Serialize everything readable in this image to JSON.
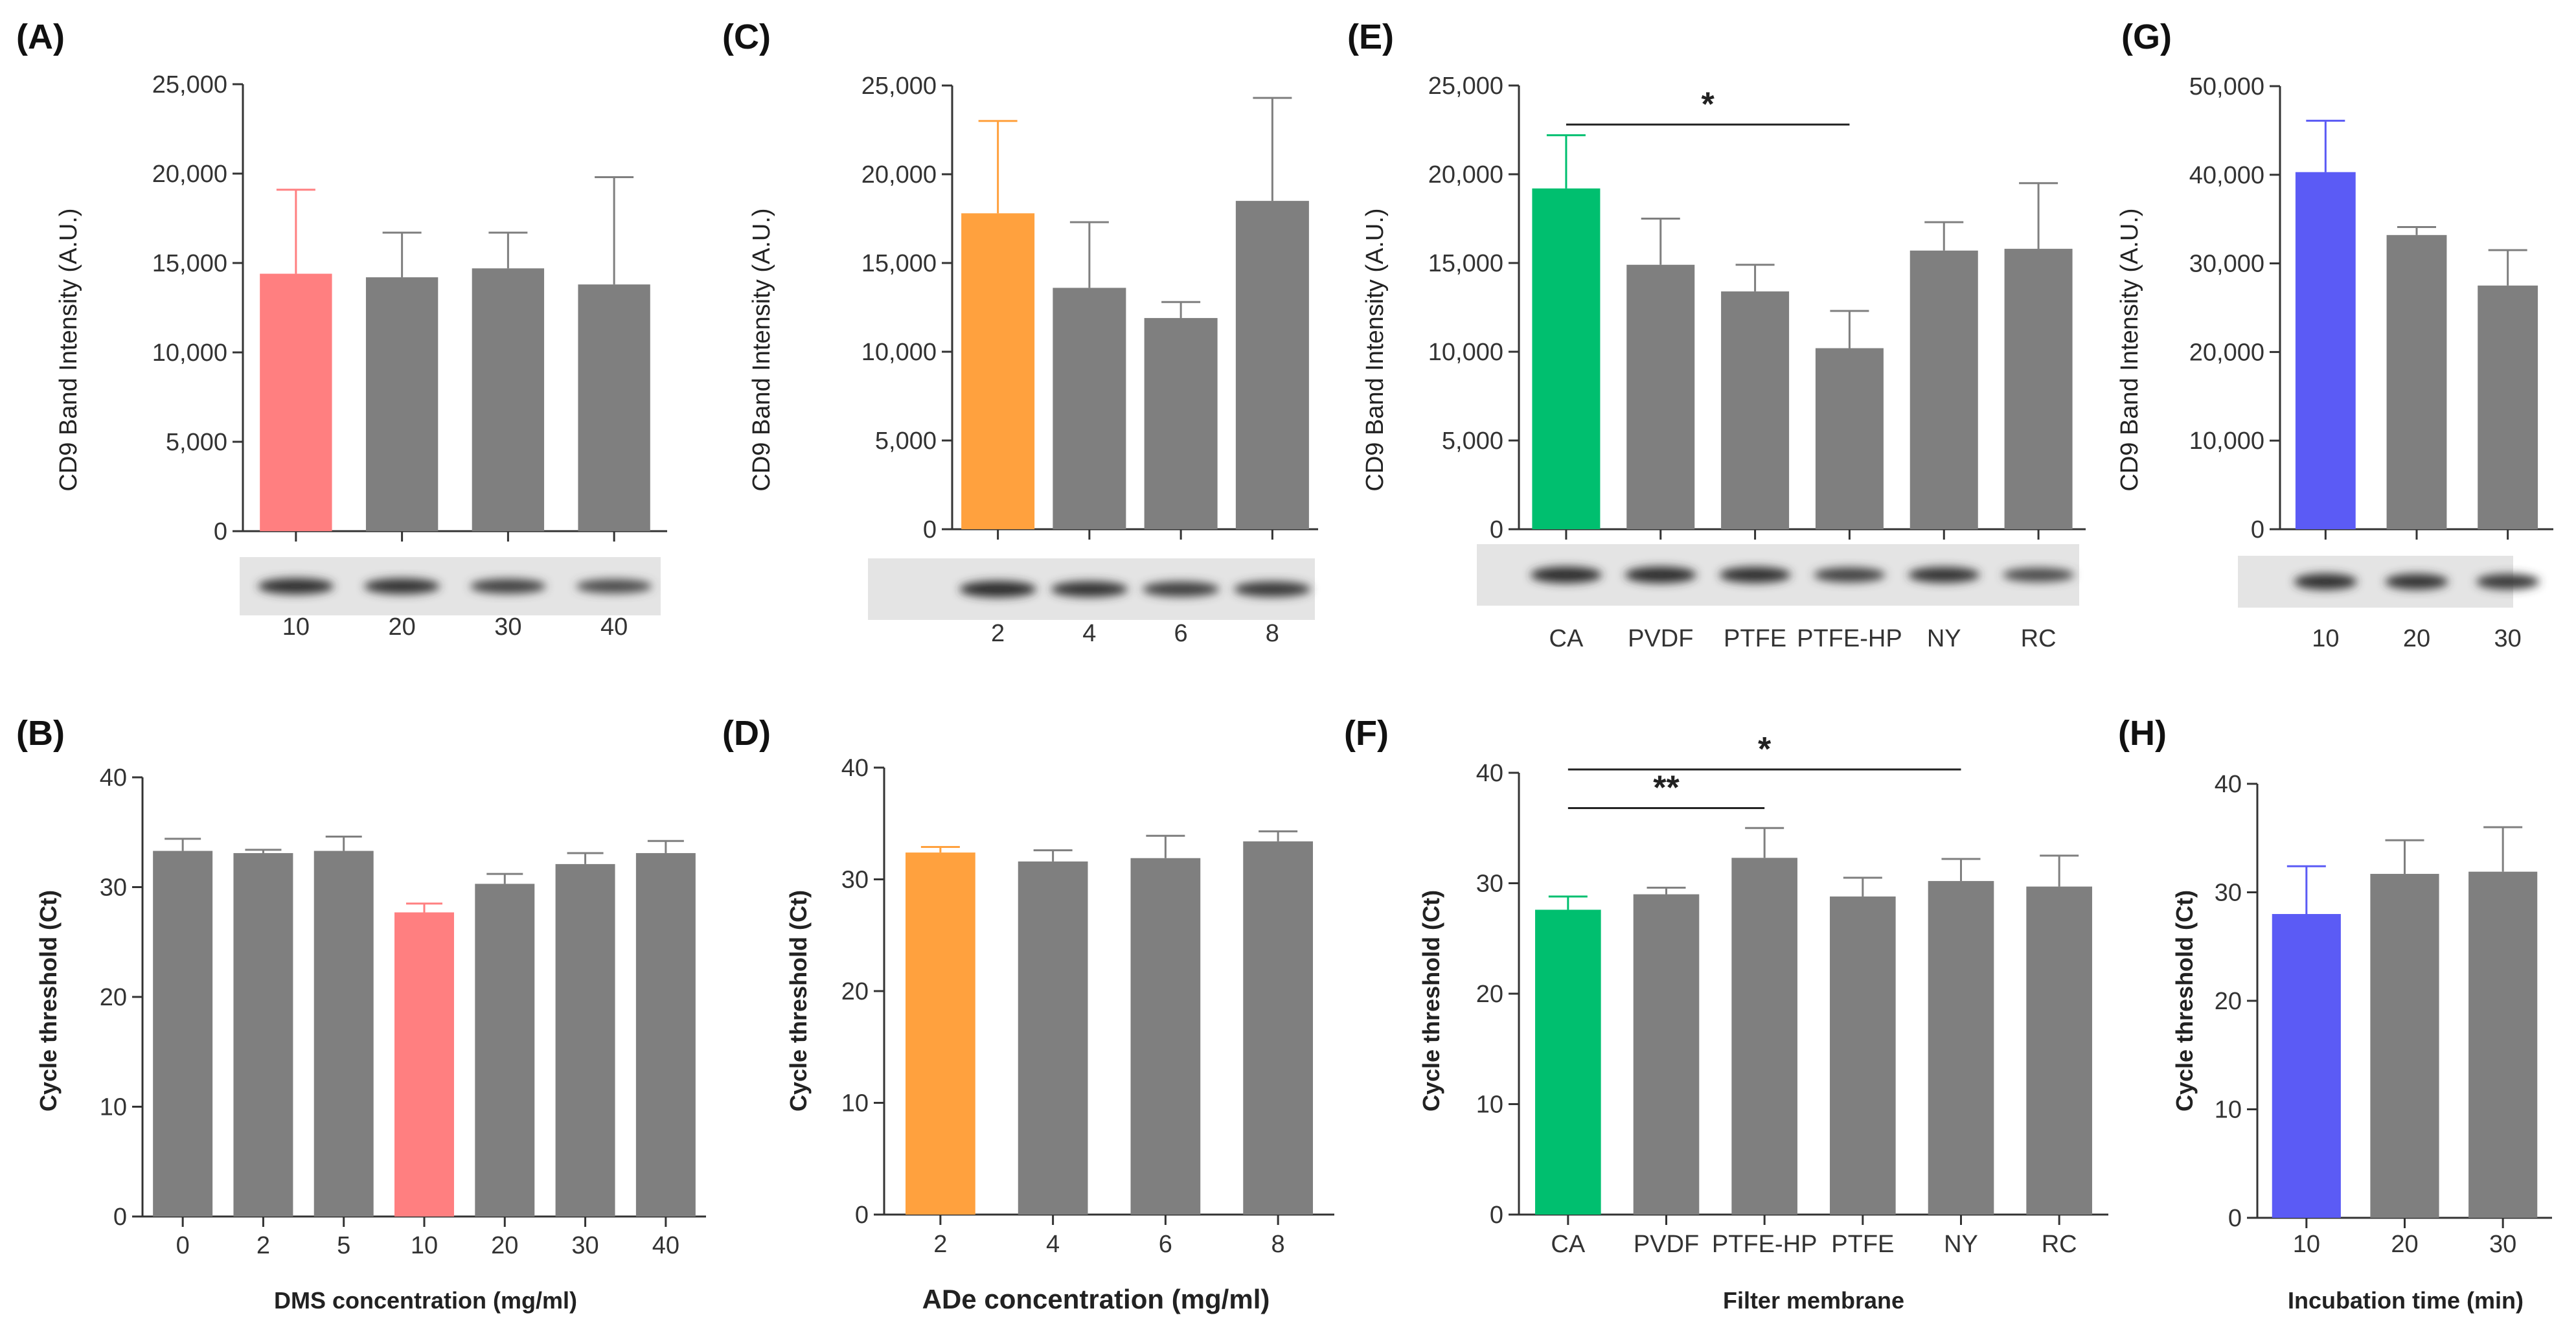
{
  "gray_color": "#7f7f7f",
  "chart_data": [
    {
      "id": "A",
      "label": "(A)",
      "type": "bar",
      "categories": [
        "10",
        "20",
        "30",
        "40"
      ],
      "values": [
        14400,
        14200,
        14700,
        13800
      ],
      "errors": [
        4700,
        2500,
        2000,
        6000
      ],
      "ylim": [
        0,
        25000
      ],
      "yticks": [
        "0",
        "5,000",
        "10,000",
        "15,000",
        "20,000",
        "25,000"
      ],
      "ylabel": "CD9 Band Intensity (A.U.)",
      "xlabel": "",
      "highlight_index": 0,
      "highlight_color": "#ff7f80",
      "blot": [
        0.9,
        0.85,
        0.7,
        0.6
      ],
      "significance": []
    },
    {
      "id": "C",
      "label": "(C)",
      "type": "bar",
      "categories": [
        "2",
        "4",
        "6",
        "8"
      ],
      "values": [
        17800,
        13600,
        11900,
        18500
      ],
      "errors": [
        5200,
        3700,
        900,
        5800
      ],
      "ylim": [
        0,
        25000
      ],
      "yticks": [
        "0",
        "5,000",
        "10,000",
        "15,000",
        "20,000",
        "25,000"
      ],
      "ylabel": "CD9 Band Intensity (A.U.)",
      "xlabel": "",
      "highlight_index": 0,
      "highlight_color": "#ffa13e",
      "blot": [
        0.95,
        0.85,
        0.75,
        0.8
      ],
      "significance": []
    },
    {
      "id": "E",
      "label": "(E)",
      "type": "bar",
      "categories": [
        "CA",
        "PVDF",
        "PTFE",
        "PTFE-HP",
        "NY",
        "RC"
      ],
      "values": [
        19200,
        14900,
        13400,
        10200,
        15700,
        15800
      ],
      "errors": [
        3000,
        2600,
        1500,
        2100,
        1600,
        3700
      ],
      "ylim": [
        0,
        25000
      ],
      "yticks": [
        "0",
        "5,000",
        "10,000",
        "15,000",
        "20,000",
        "25,000"
      ],
      "ylabel": "CD9 Band Intensity (A.U.)",
      "xlabel": "",
      "highlight_index": 0,
      "highlight_color": "#00bf6f",
      "blot": [
        0.95,
        0.95,
        0.9,
        0.7,
        0.85,
        0.6
      ],
      "significance": [
        {
          "from": 0,
          "to": 3,
          "level": 22800,
          "text": "*"
        }
      ]
    },
    {
      "id": "G",
      "label": "(G)",
      "type": "bar",
      "categories": [
        "10",
        "20",
        "30"
      ],
      "values": [
        40300,
        33200,
        27500
      ],
      "errors": [
        5800,
        900,
        4000
      ],
      "ylim": [
        0,
        50000
      ],
      "yticks": [
        "0",
        "10,000",
        "20,000",
        "30,000",
        "40,000",
        "50,000"
      ],
      "ylabel": "CD9 Band Intensity (A.U.)",
      "xlabel": "",
      "highlight_index": 0,
      "highlight_color": "#5b5bf5",
      "blot": [
        0.9,
        0.85,
        0.8
      ],
      "significance": []
    },
    {
      "id": "B",
      "label": "(B)",
      "type": "bar",
      "categories": [
        "0",
        "2",
        "5",
        "10",
        "20",
        "30",
        "40"
      ],
      "values": [
        33.3,
        33.1,
        33.3,
        27.7,
        30.3,
        32.1,
        33.1
      ],
      "errors": [
        1.1,
        0.3,
        1.3,
        0.8,
        0.9,
        1.0,
        1.1
      ],
      "ylim": [
        0,
        40
      ],
      "yticks": [
        "0",
        "10",
        "20",
        "30",
        "40"
      ],
      "ylabel": "Cycle threshold (Ct)",
      "xlabel": "DMS concentration (mg/ml)",
      "highlight_index": 3,
      "highlight_color": "#ff7f80",
      "blot": [],
      "significance": []
    },
    {
      "id": "D",
      "label": "(D)",
      "type": "bar",
      "categories": [
        "2",
        "4",
        "6",
        "8"
      ],
      "values": [
        32.4,
        31.6,
        31.9,
        33.4
      ],
      "errors": [
        0.5,
        1.0,
        2.0,
        0.9
      ],
      "ylim": [
        0,
        40
      ],
      "yticks": [
        "0",
        "10",
        "20",
        "30",
        "40"
      ],
      "ylabel": "Cycle threshold (Ct)",
      "xlabel": "ADe concentration (mg/ml)",
      "highlight_index": 0,
      "highlight_color": "#ffa13e",
      "blot": [],
      "significance": []
    },
    {
      "id": "F",
      "label": "(F)",
      "type": "bar",
      "categories": [
        "CA",
        "PVDF",
        "PTFE-HP",
        "PTFE",
        "NY",
        "RC"
      ],
      "values": [
        27.6,
        29.0,
        32.3,
        28.8,
        30.2,
        29.7
      ],
      "errors": [
        1.2,
        0.6,
        2.7,
        1.7,
        2.0,
        2.8
      ],
      "ylim": [
        0,
        40
      ],
      "yticks": [
        "0",
        "10",
        "20",
        "30",
        "40"
      ],
      "ylabel": "Cycle threshold (Ct)",
      "xlabel": "Filter membrane",
      "highlight_index": 0,
      "highlight_color": "#00bf6f",
      "blot": [],
      "significance": [
        {
          "from": 0,
          "to": 4,
          "level": 40.3,
          "text": "*"
        },
        {
          "from": 0,
          "to": 2,
          "level": 36.8,
          "text": "**"
        }
      ]
    },
    {
      "id": "H",
      "label": "(H)",
      "type": "bar",
      "categories": [
        "10",
        "20",
        "30"
      ],
      "values": [
        28.0,
        31.7,
        31.9
      ],
      "errors": [
        4.4,
        3.1,
        4.1
      ],
      "ylim": [
        0,
        40
      ],
      "yticks": [
        "0",
        "10",
        "20",
        "30",
        "40"
      ],
      "ylabel": "Cycle threshold (Ct)",
      "xlabel": "Incubation time (min)",
      "highlight_index": 0,
      "highlight_color": "#5b5bf5",
      "blot": [],
      "significance": []
    }
  ]
}
